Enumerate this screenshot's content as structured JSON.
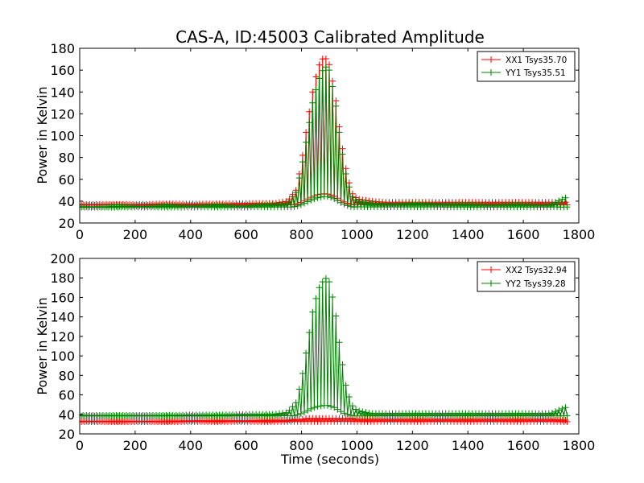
{
  "colors": {
    "xx": "#ff0000",
    "yy": "#008000",
    "axes": "#000000"
  },
  "chart_data": [
    {
      "type": "line",
      "title": "CAS-A, ID:45003 Calibrated Amplitude",
      "xlabel": "",
      "ylabel": "Power in Kelvin",
      "xlim": [
        0,
        1800
      ],
      "ylim": [
        20,
        180
      ],
      "xticks": [
        "0",
        "200",
        "400",
        "600",
        "800",
        "1000",
        "1200",
        "1400",
        "1600",
        "1800"
      ],
      "yticks": [
        "20",
        "40",
        "60",
        "80",
        "100",
        "120",
        "140",
        "160",
        "180"
      ],
      "legend_position": "top-right",
      "series": [
        {
          "name": "XX1 Tsys35.70",
          "color": "#ff0000",
          "x": [
            0,
            100,
            200,
            300,
            400,
            500,
            600,
            700,
            750,
            780,
            800,
            820,
            840,
            860,
            880,
            890,
            900,
            920,
            940,
            960,
            980,
            1000,
            1050,
            1100,
            1200,
            1300,
            1400,
            1500,
            1600,
            1700,
            1760
          ],
          "y": [
            37,
            37,
            37,
            37.5,
            37.5,
            37.5,
            38,
            38,
            40,
            50,
            75,
            110,
            140,
            163,
            172,
            170,
            165,
            140,
            100,
            70,
            48,
            42,
            40,
            39,
            39,
            39,
            39,
            39,
            39,
            39,
            39
          ]
        },
        {
          "name": "YY1 Tsys35.51",
          "color": "#008000",
          "x": [
            0,
            100,
            200,
            300,
            400,
            500,
            600,
            700,
            750,
            780,
            800,
            820,
            840,
            860,
            880,
            890,
            900,
            920,
            940,
            960,
            980,
            1000,
            1050,
            1100,
            1200,
            1300,
            1400,
            1500,
            1600,
            1700,
            1760
          ],
          "y": [
            35,
            35,
            35.5,
            35.5,
            36,
            36,
            36,
            37,
            38,
            48,
            70,
            100,
            130,
            150,
            162,
            163,
            160,
            135,
            95,
            65,
            45,
            40,
            38,
            38,
            38,
            38,
            37,
            37,
            37,
            37,
            44
          ]
        }
      ]
    },
    {
      "type": "line",
      "title": "",
      "xlabel": "Time (seconds)",
      "ylabel": "Power in Kelvin",
      "xlim": [
        0,
        1800
      ],
      "ylim": [
        20,
        200
      ],
      "xticks": [
        "0",
        "200",
        "400",
        "600",
        "800",
        "1000",
        "1200",
        "1400",
        "1600",
        "1800"
      ],
      "yticks": [
        "20",
        "40",
        "60",
        "80",
        "100",
        "120",
        "140",
        "160",
        "180",
        "200"
      ],
      "legend_position": "top-right",
      "series": [
        {
          "name": "XX2 Tsys32.94",
          "color": "#ff0000",
          "x": [
            0,
            100,
            200,
            300,
            400,
            500,
            600,
            700,
            750,
            780,
            800,
            820,
            840,
            860,
            880,
            890,
            900,
            920,
            940,
            960,
            980,
            1000,
            1050,
            1100,
            1200,
            1300,
            1400,
            1500,
            1600,
            1700,
            1760
          ],
          "y": [
            33,
            33,
            33,
            33,
            33.5,
            33.5,
            33.5,
            34,
            34,
            35,
            35,
            36,
            36,
            36,
            36,
            36,
            36,
            36,
            36,
            36,
            36,
            35,
            35,
            35,
            35,
            35,
            35,
            35,
            35,
            35,
            34
          ]
        },
        {
          "name": "YY2 Tsys39.28",
          "color": "#008000",
          "x": [
            0,
            100,
            200,
            300,
            400,
            500,
            600,
            700,
            750,
            780,
            800,
            820,
            840,
            860,
            880,
            890,
            900,
            920,
            940,
            960,
            980,
            1000,
            1050,
            1100,
            1200,
            1300,
            1400,
            1500,
            1600,
            1700,
            1760
          ],
          "y": [
            39,
            39,
            39,
            39,
            39.5,
            39.5,
            40,
            40,
            42,
            52,
            75,
            110,
            145,
            168,
            178,
            180,
            176,
            150,
            105,
            70,
            50,
            44,
            41,
            41,
            41,
            41,
            41,
            41,
            41,
            41,
            48
          ]
        }
      ]
    }
  ]
}
